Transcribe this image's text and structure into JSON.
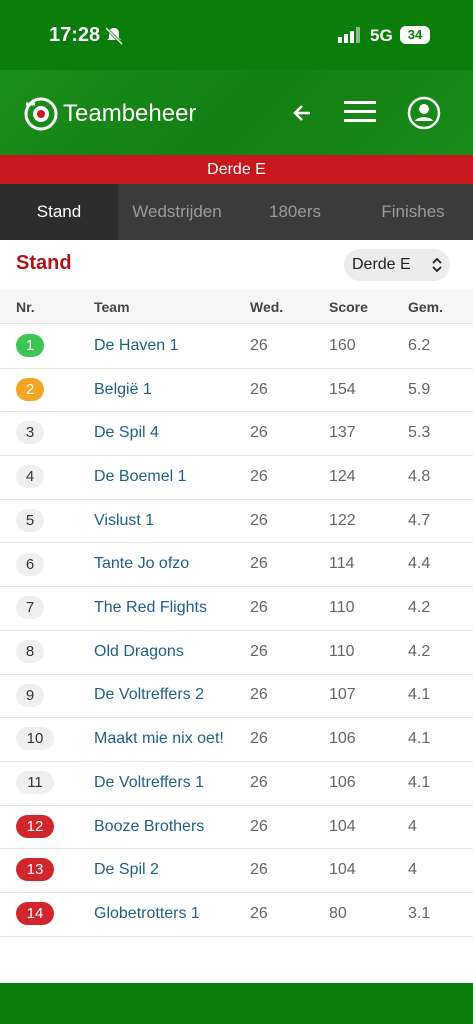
{
  "status_bar": {
    "time": "17:28",
    "network": "5G",
    "battery": "34"
  },
  "header": {
    "app_name": "Teambeheer"
  },
  "banner": "Derde E",
  "tabs": [
    "Stand",
    "Wedstrijden",
    "180ers",
    "Finishes"
  ],
  "section": {
    "title": "Stand",
    "selector": "Derde E"
  },
  "table": {
    "columns": [
      "Nr.",
      "Team",
      "Wed.",
      "Score",
      "Gem."
    ],
    "rows": [
      [
        1,
        "De Haven 1",
        26,
        160,
        6.2
      ],
      [
        2,
        "België 1",
        26,
        154,
        5.9
      ],
      [
        3,
        "De Spil 4",
        26,
        137,
        5.3
      ],
      [
        4,
        "De Boemel 1",
        26,
        124,
        4.8
      ],
      [
        5,
        "Vislust 1",
        26,
        122,
        4.7
      ],
      [
        6,
        "Tante Jo ofzo",
        26,
        114,
        4.4
      ],
      [
        7,
        "The Red Flights",
        26,
        110,
        4.2
      ],
      [
        8,
        "Old Dragons",
        26,
        110,
        4.2
      ],
      [
        9,
        "De Voltreffers 2",
        26,
        107,
        4.1
      ],
      [
        10,
        "Maakt mie nix oet!",
        26,
        106,
        4.1
      ],
      [
        11,
        "De Voltreffers 1",
        26,
        106,
        4.1
      ],
      [
        12,
        "Booze Brothers",
        26,
        104,
        4
      ],
      [
        13,
        "De Spil 2",
        26,
        104,
        4
      ],
      [
        14,
        "Globetrotters 1",
        26,
        80,
        3.1
      ]
    ]
  }
}
